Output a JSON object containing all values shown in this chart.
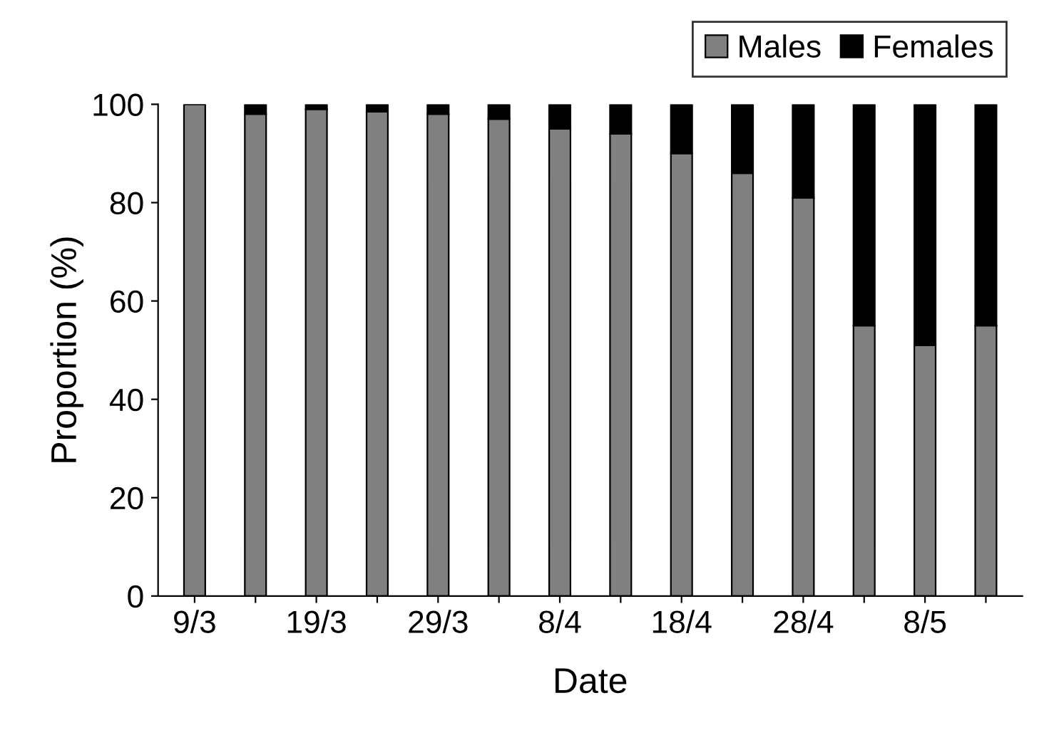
{
  "chart_data": {
    "type": "bar",
    "stacked": true,
    "xlabel": "Date",
    "ylabel": "Proportion (%)",
    "categories": [
      "9/3",
      null,
      "19/3",
      null,
      "29/3",
      null,
      "8/4",
      null,
      "18/4",
      null,
      "28/4",
      null,
      "8/5",
      null
    ],
    "series": [
      {
        "name": "Males",
        "color": "#808080",
        "values": [
          100,
          98,
          99,
          98.5,
          98,
          97,
          95,
          94,
          90,
          86,
          81,
          55,
          51,
          55
        ]
      },
      {
        "name": "Females",
        "color": "#000000",
        "values": [
          0,
          2,
          1,
          1.5,
          2,
          3,
          5,
          6,
          10,
          14,
          19,
          45,
          49,
          45
        ]
      }
    ],
    "ylim": [
      0,
      100
    ],
    "yticks": [
      0,
      20,
      40,
      60,
      80,
      100
    ],
    "grid": false,
    "legend": "top right"
  }
}
